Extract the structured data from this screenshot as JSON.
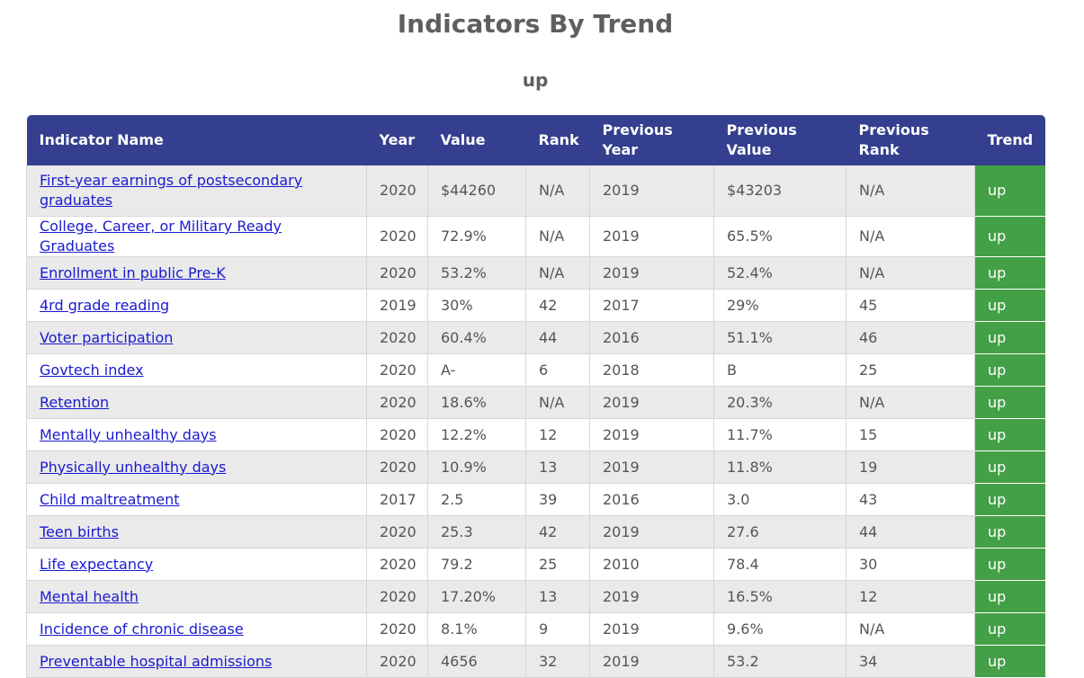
{
  "page": {
    "title": "Indicators By Trend",
    "section": "up"
  },
  "table": {
    "headers": {
      "name": "Indicator Name",
      "year": "Year",
      "value": "Value",
      "rank": "Rank",
      "prev_year": "Previous Year",
      "prev_value": "Previous Value",
      "prev_rank": "Previous Rank",
      "trend": "Trend"
    },
    "rows": [
      {
        "name": "First-year earnings of postsecondary graduates",
        "year": "2020",
        "value": "$44260",
        "rank": "N/A",
        "prev_year": "2019",
        "prev_value": "$43203",
        "prev_rank": "N/A",
        "trend": "up"
      },
      {
        "name": "College, Career, or Military Ready Graduates",
        "year": "2020",
        "value": "72.9%",
        "rank": "N/A",
        "prev_year": "2019",
        "prev_value": "65.5%",
        "prev_rank": "N/A",
        "trend": "up"
      },
      {
        "name": "Enrollment in public Pre-K",
        "year": "2020",
        "value": "53.2%",
        "rank": "N/A",
        "prev_year": "2019",
        "prev_value": "52.4%",
        "prev_rank": "N/A",
        "trend": "up"
      },
      {
        "name": "4rd grade reading",
        "year": "2019",
        "value": "30%",
        "rank": "42",
        "prev_year": "2017",
        "prev_value": "29%",
        "prev_rank": "45",
        "trend": "up"
      },
      {
        "name": "Voter participation",
        "year": "2020",
        "value": "60.4%",
        "rank": "44",
        "prev_year": "2016",
        "prev_value": "51.1%",
        "prev_rank": "46",
        "trend": "up"
      },
      {
        "name": "Govtech index",
        "year": "2020",
        "value": "A-",
        "rank": "6",
        "prev_year": "2018",
        "prev_value": "B",
        "prev_rank": "25",
        "trend": "up"
      },
      {
        "name": "Retention",
        "year": "2020",
        "value": "18.6%",
        "rank": "N/A",
        "prev_year": "2019",
        "prev_value": "20.3%",
        "prev_rank": "N/A",
        "trend": "up"
      },
      {
        "name": "Mentally unhealthy days",
        "year": "2020",
        "value": "12.2%",
        "rank": "12",
        "prev_year": "2019",
        "prev_value": "11.7%",
        "prev_rank": "15",
        "trend": "up"
      },
      {
        "name": "Physically unhealthy days",
        "year": "2020",
        "value": "10.9%",
        "rank": "13",
        "prev_year": "2019",
        "prev_value": "11.8%",
        "prev_rank": "19",
        "trend": "up"
      },
      {
        "name": "Child maltreatment",
        "year": "2017",
        "value": "2.5",
        "rank": "39",
        "prev_year": "2016",
        "prev_value": "3.0",
        "prev_rank": "43",
        "trend": "up"
      },
      {
        "name": "Teen births",
        "year": "2020",
        "value": "25.3",
        "rank": "42",
        "prev_year": "2019",
        "prev_value": "27.6",
        "prev_rank": "44",
        "trend": "up"
      },
      {
        "name": "Life expectancy",
        "year": "2020",
        "value": "79.2",
        "rank": "25",
        "prev_year": "2010",
        "prev_value": "78.4",
        "prev_rank": "30",
        "trend": "up"
      },
      {
        "name": "Mental health",
        "year": "2020",
        "value": "17.20%",
        "rank": "13",
        "prev_year": "2019",
        "prev_value": "16.5%",
        "prev_rank": "12",
        "trend": "up"
      },
      {
        "name": "Incidence of chronic disease",
        "year": "2020",
        "value": "8.1%",
        "rank": "9",
        "prev_year": "2019",
        "prev_value": "9.6%",
        "prev_rank": "N/A",
        "trend": "up"
      },
      {
        "name": "Preventable hospital admissions",
        "year": "2020",
        "value": "4656",
        "rank": "32",
        "prev_year": "2019",
        "prev_value": "53.2",
        "prev_rank": "34",
        "trend": "up"
      }
    ]
  },
  "colors": {
    "header_bg": "#343f8f",
    "trend_up": "#43a047",
    "link": "#1a1ad0"
  }
}
